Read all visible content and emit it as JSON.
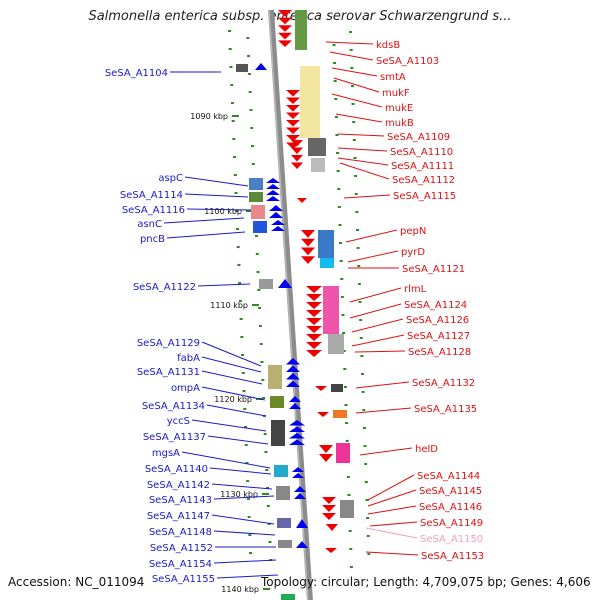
{
  "title": "Salmonella enterica subsp. enterica serovar Schwarzengrund s...",
  "footer": {
    "accession": "Accession: NC_011094",
    "summary": "Topology: circular; Length: 4,709,075 bp; Genes: 4,606"
  },
  "colors": {
    "left_label": "#1a1acc",
    "right_label": "#dd1111",
    "faded_label": "#f0a0c0",
    "backbone": "#8c8c8c",
    "dot": "#2e8b22",
    "forward_arrow": "#0000ee",
    "reverse_arrow": "#ee0000"
  },
  "scale_labels": [
    "1090 kbp",
    "1100 kbp",
    "1110 kbp",
    "1120 kbp",
    "1130 kbp",
    "1140 kbp"
  ],
  "left_genes": [
    "SeSA_A1104",
    "aspC",
    "SeSA_A1114",
    "SeSA_A1116",
    "asnC",
    "pncB",
    "SeSA_A1122",
    "SeSA_A1129",
    "fabA",
    "SeSA_A1131",
    "ompA",
    "SeSA_A1134",
    "yccS",
    "SeSA_A1137",
    "mgsA",
    "SeSA_A1140",
    "SeSA_A1142",
    "SeSA_A1143",
    "SeSA_A1147",
    "SeSA_A1148",
    "SeSA_A1152",
    "SeSA_A1154",
    "SeSA_A1155"
  ],
  "right_genes": [
    "kdsB",
    "SeSA_A1103",
    "smtA",
    "mukF",
    "mukE",
    "mukB",
    "SeSA_A1109",
    "SeSA_A1110",
    "SeSA_A1111",
    "SeSA_A1112",
    "SeSA_A1115",
    "pepN",
    "pyrD",
    "SeSA_A1121",
    "rlmL",
    "SeSA_A1124",
    "SeSA_A1126",
    "SeSA_A1127",
    "SeSA_A1128",
    "SeSA_A1132",
    "SeSA_A1135",
    "helD",
    "SeSA_A1144",
    "SeSA_A1145",
    "SeSA_A1146",
    "SeSA_A1149",
    "SeSA_A1150",
    "SeSA_A1153"
  ],
  "faded_genes": [
    "SeSA_A1150"
  ]
}
